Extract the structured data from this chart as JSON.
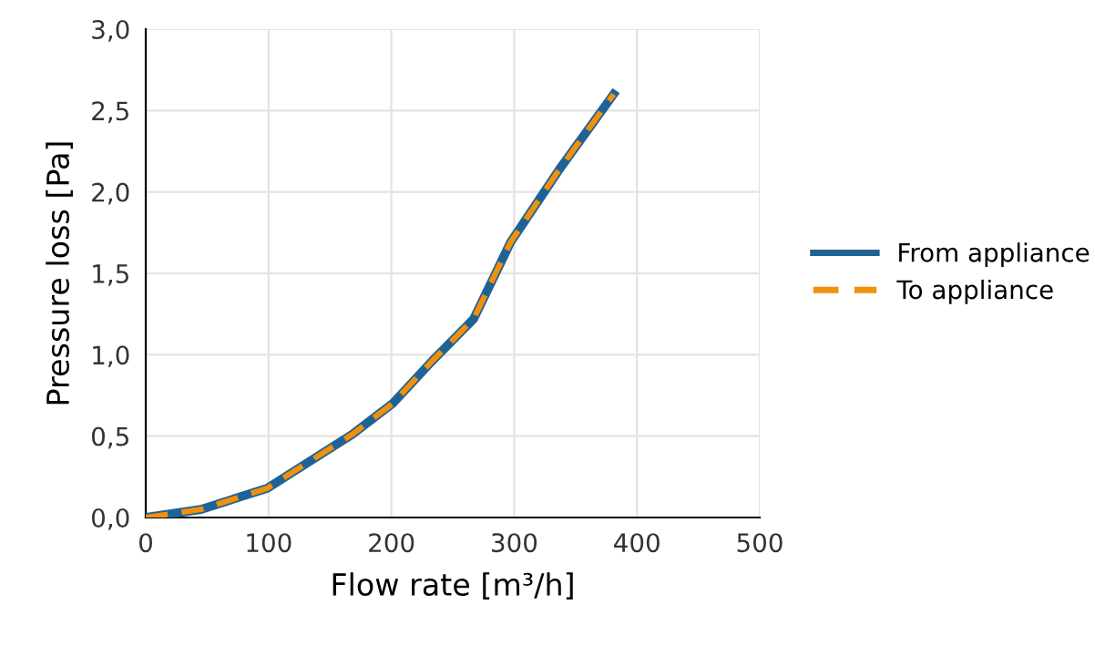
{
  "chart_data": {
    "type": "line",
    "xlabel": "Flow rate [m³/h]",
    "ylabel": "Pressure loss [Pa]",
    "xlim": [
      0,
      500
    ],
    "xticks": [
      0,
      100,
      200,
      300,
      400,
      500
    ],
    "ylim": [
      0,
      3
    ],
    "yticks": [
      {
        "value": 0,
        "label": "0,0"
      },
      {
        "value": 0.5,
        "label": "0,5"
      },
      {
        "value": 1,
        "label": "1,0"
      },
      {
        "value": 1.5,
        "label": "1,5"
      },
      {
        "value": 2,
        "label": "2,0"
      },
      {
        "value": 2.5,
        "label": "2,5"
      },
      {
        "value": 3,
        "label": "3,0"
      }
    ],
    "grid": true,
    "legend": "right",
    "marker": "none",
    "series": [
      {
        "name": "From appliance",
        "color": "#1f6396",
        "line_style": "solid",
        "x": [
          0,
          45,
          99,
          168,
          201,
          233,
          267,
          297,
          336,
          381
        ],
        "values": [
          0,
          0.05,
          0.18,
          0.51,
          0.7,
          0.96,
          1.22,
          1.69,
          2.13,
          2.6
        ]
      },
      {
        "name": "To appliance",
        "color": "#f0900c",
        "line_style": "dashed",
        "x": [
          0,
          45,
          99,
          168,
          201,
          233,
          267,
          297,
          336,
          381
        ],
        "values": [
          0,
          0.05,
          0.18,
          0.51,
          0.7,
          0.96,
          1.22,
          1.69,
          2.13,
          2.6
        ]
      }
    ]
  }
}
